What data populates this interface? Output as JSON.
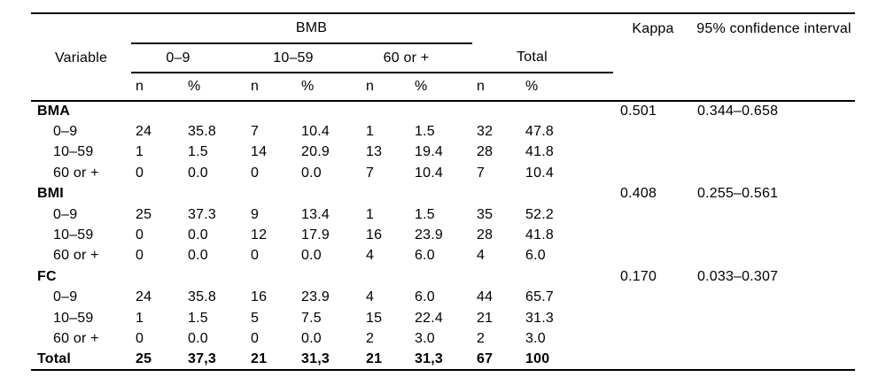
{
  "colors": {
    "text": "#000000",
    "background": "#ffffff",
    "rule": "#000000"
  },
  "table": {
    "headers": {
      "variable": "Variable",
      "bmb": "BMB",
      "kappa": "Kappa",
      "ci": "95% confidence interval",
      "groups": [
        "0–9",
        "10–59",
        "60 or +"
      ],
      "total": "Total",
      "n": "n",
      "pct": "%"
    },
    "sections": [
      {
        "label": "BMA",
        "kappa": "0.501",
        "ci": "0.344–0.658",
        "rows": [
          {
            "label": "0–9",
            "values": [
              "24",
              "35.8",
              "7",
              "10.4",
              "1",
              "1.5",
              "32",
              "47.8"
            ]
          },
          {
            "label": "10–59",
            "values": [
              "1",
              "1.5",
              "14",
              "20.9",
              "13",
              "19.4",
              "28",
              "41.8"
            ]
          },
          {
            "label": "60 or +",
            "values": [
              "0",
              "0.0",
              "0",
              "0.0",
              "7",
              "10.4",
              "7",
              "10.4"
            ]
          }
        ]
      },
      {
        "label": "BMI",
        "kappa": "0.408",
        "ci": "0.255–0.561",
        "rows": [
          {
            "label": "0–9",
            "values": [
              "25",
              "37.3",
              "9",
              "13.4",
              "1",
              "1.5",
              "35",
              "52.2"
            ]
          },
          {
            "label": "10–59",
            "values": [
              "0",
              "0.0",
              "12",
              "17.9",
              "16",
              "23.9",
              "28",
              "41.8"
            ]
          },
          {
            "label": "60 or +",
            "values": [
              "0",
              "0.0",
              "0",
              "0.0",
              "4",
              "6.0",
              "4",
              "6.0"
            ]
          }
        ]
      },
      {
        "label": "FC",
        "kappa": "0.170",
        "ci": "0.033–0.307",
        "rows": [
          {
            "label": "0–9",
            "values": [
              "24",
              "35.8",
              "16",
              "23.9",
              "4",
              "6.0",
              "44",
              "65.7"
            ]
          },
          {
            "label": "10–59",
            "values": [
              "1",
              "1.5",
              "5",
              "7.5",
              "15",
              "22.4",
              "21",
              "31.3"
            ]
          },
          {
            "label": "60 or +",
            "values": [
              "0",
              "0.0",
              "0",
              "0.0",
              "2",
              "3.0",
              "2",
              "3.0"
            ]
          }
        ]
      }
    ],
    "total_row": {
      "label": "Total",
      "values": [
        "25",
        "37,3",
        "21",
        "31,3",
        "21",
        "31,3",
        "67",
        "100"
      ]
    }
  }
}
